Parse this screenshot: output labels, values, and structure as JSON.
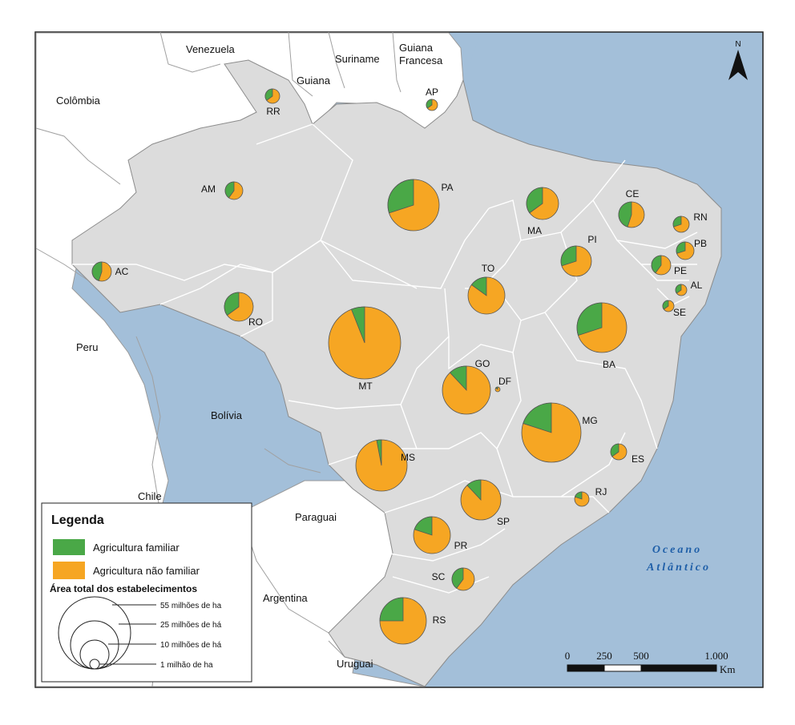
{
  "colors": {
    "familiar": "#4aa847",
    "nao_familiar": "#f6a623",
    "ocean": "#a3bfd9",
    "brazil": "#dcdcdc",
    "neighbors": "#ffffff",
    "border": "#9a9a9a"
  },
  "north_arrow": {
    "label": "N"
  },
  "countries": [
    "Venezuela",
    "Guiana",
    "Suriname",
    "Guiana\nFrancesa",
    "Colômbia",
    "Peru",
    "Bolívia",
    "Chile",
    "Paraguai",
    "Argentina",
    "Uruguai"
  ],
  "country_labels": {
    "venezuela": "Venezuela",
    "guiana": "Guiana",
    "suriname": "Suriname",
    "guiana_francesa_1": "Guiana",
    "guiana_francesa_2": "Francesa",
    "colombia": "Colômbia",
    "peru": "Peru",
    "bolivia": "Bolívia",
    "chile": "Chile",
    "paraguai": "Paraguai",
    "argentina": "Argentina",
    "uruguai": "Uruguai"
  },
  "ocean": {
    "line1": "Oceano",
    "line2": "Atlântico"
  },
  "legend": {
    "title": "Legenda",
    "familiar": "Agricultura familiar",
    "nao_familiar": "Agricultura não familiar",
    "area_title": "Área total dos estabelecimentos",
    "sizes": [
      "55 milhões de ha",
      "25 milhões de há",
      "10 milhões de há",
      "1 milhão de ha"
    ]
  },
  "scale_bar": {
    "ticks": [
      "0",
      "250",
      "500",
      "1.000"
    ],
    "unit": "Km"
  },
  "states": [
    {
      "code": "RR",
      "familiar_share": 0.35
    },
    {
      "code": "AP",
      "familiar_share": 0.35
    },
    {
      "code": "AM",
      "familiar_share": 0.4
    },
    {
      "code": "PA",
      "familiar_share": 0.3
    },
    {
      "code": "MA",
      "familiar_share": 0.35
    },
    {
      "code": "CE",
      "familiar_share": 0.45
    },
    {
      "code": "RN",
      "familiar_share": 0.3
    },
    {
      "code": "PB",
      "familiar_share": 0.3
    },
    {
      "code": "PI",
      "familiar_share": 0.3
    },
    {
      "code": "PE",
      "familiar_share": 0.4
    },
    {
      "code": "AL",
      "familiar_share": 0.35
    },
    {
      "code": "SE",
      "familiar_share": 0.35
    },
    {
      "code": "AC",
      "familiar_share": 0.45
    },
    {
      "code": "TO",
      "familiar_share": 0.15
    },
    {
      "code": "RO",
      "familiar_share": 0.35
    },
    {
      "code": "MT",
      "familiar_share": 0.06
    },
    {
      "code": "BA",
      "familiar_share": 0.3
    },
    {
      "code": "GO",
      "familiar_share": 0.12
    },
    {
      "code": "DF",
      "familiar_share": 0.15
    },
    {
      "code": "MG",
      "familiar_share": 0.2
    },
    {
      "code": "ES",
      "familiar_share": 0.35
    },
    {
      "code": "MS",
      "familiar_share": 0.03
    },
    {
      "code": "SP",
      "familiar_share": 0.12
    },
    {
      "code": "RJ",
      "familiar_share": 0.2
    },
    {
      "code": "PR",
      "familiar_share": 0.2
    },
    {
      "code": "SC",
      "familiar_share": 0.4
    },
    {
      "code": "RS",
      "familiar_share": 0.25
    }
  ]
}
